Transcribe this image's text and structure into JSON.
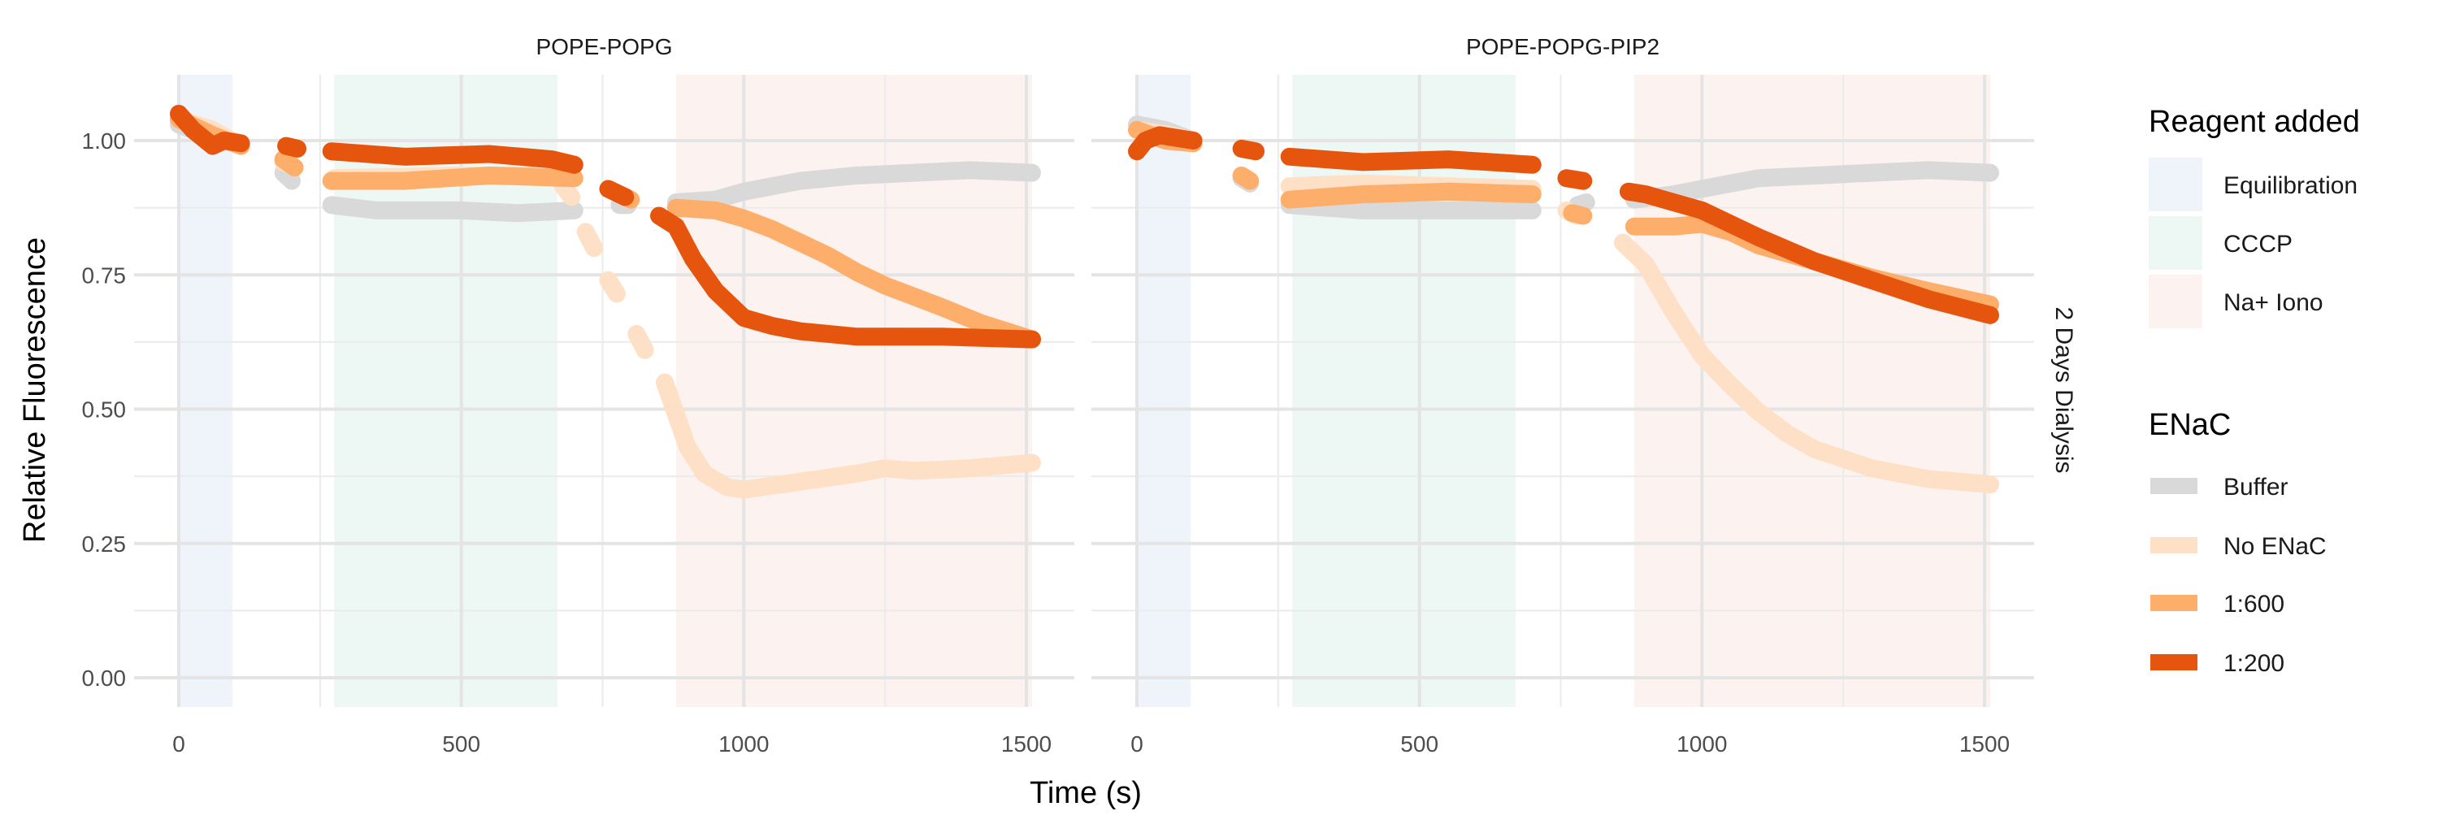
{
  "chart_data": {
    "type": "scatter",
    "xlabel": "Time (s)",
    "ylabel": "Relative Fluorescence",
    "xlim": [
      -40,
      1560
    ],
    "ylim": [
      -0.05,
      1.1
    ],
    "x_ticks": [
      0,
      500,
      1000,
      1500
    ],
    "x_tick_labels": [
      "0",
      "500",
      "1000",
      "1500"
    ],
    "y_ticks": [
      0,
      0.25,
      0.5,
      0.75,
      1.0
    ],
    "y_tick_labels": [
      "0.00",
      "0.25",
      "0.50",
      "0.75",
      "1.00"
    ],
    "grid": true,
    "row_strip": "2 Days Dialysis",
    "legend_position": "right",
    "reagent_legend": {
      "title": "Reagent added",
      "items": [
        {
          "label": "Equilibration",
          "color": "#eef4fa",
          "range": [
            0,
            95
          ]
        },
        {
          "label": "CCCP",
          "color": "#edf7f4",
          "range": [
            275,
            670
          ]
        },
        {
          "label": "Na+ Iono",
          "color": "#fcf2f0",
          "range": [
            880,
            1510
          ]
        }
      ]
    },
    "enac_legend": {
      "title": "ENaC",
      "items": [
        {
          "label": "Buffer",
          "color": "#d9d9d9"
        },
        {
          "label": "No ENaC",
          "color": "#fde0c5"
        },
        {
          "label": "1:600",
          "color": "#fdae6b"
        },
        {
          "label": "1:200",
          "color": "#e6550d"
        }
      ]
    },
    "panels": [
      {
        "title": "POPE-POPG",
        "series": [
          {
            "name": "Buffer",
            "segments": [
              [
                [
                  0,
                  1.03
                ],
                [
                  50,
                  1.01
                ],
                [
                  110,
                  0.995
                ]
              ],
              [
                [
                  185,
                  0.94
                ],
                [
                  200,
                  0.925
                ]
              ],
              [
                [
                  270,
                  0.88
                ],
                [
                  350,
                  0.87
                ],
                [
                  500,
                  0.87
                ],
                [
                  600,
                  0.865
                ],
                [
                  700,
                  0.87
                ]
              ],
              [
                [
                  780,
                  0.88
                ],
                [
                  795,
                  0.88
                ]
              ],
              [
                [
                  880,
                  0.885
                ],
                [
                  950,
                  0.89
                ],
                [
                  1000,
                  0.905
                ],
                [
                  1100,
                  0.925
                ],
                [
                  1200,
                  0.935
                ],
                [
                  1300,
                  0.94
                ],
                [
                  1400,
                  0.945
                ],
                [
                  1510,
                  0.94
                ]
              ]
            ]
          },
          {
            "name": "No ENaC",
            "segments": [
              [
                [
                  0,
                  1.04
                ],
                [
                  60,
                  1.02
                ],
                [
                  110,
                  0.99
                ]
              ],
              [
                [
                  185,
                  0.96
                ],
                [
                  200,
                  0.955
                ]
              ],
              [
                [
                  275,
                  0.93
                ],
                [
                  500,
                  0.935
                ],
                [
                  670,
                  0.935
                ]
              ],
              [
                [
                  680,
                  0.915
                ],
                [
                  695,
                  0.895
                ]
              ],
              [
                [
                  720,
                  0.83
                ],
                [
                  735,
                  0.8
                ]
              ],
              [
                [
                  760,
                  0.74
                ],
                [
                  775,
                  0.715
                ]
              ],
              [
                [
                  810,
                  0.64
                ],
                [
                  825,
                  0.61
                ]
              ],
              [
                [
                  860,
                  0.55
                ],
                [
                  880,
                  0.49
                ],
                [
                  900,
                  0.43
                ],
                [
                  930,
                  0.38
                ],
                [
                  970,
                  0.355
                ],
                [
                  1000,
                  0.35
                ],
                [
                  1100,
                  0.365
                ],
                [
                  1200,
                  0.38
                ],
                [
                  1250,
                  0.39
                ],
                [
                  1300,
                  0.385
                ],
                [
                  1400,
                  0.39
                ],
                [
                  1510,
                  0.4
                ]
              ]
            ]
          },
          {
            "name": "1:600",
            "segments": [
              [
                [
                  0,
                  1.04
                ],
                [
                  60,
                  1.01
                ],
                [
                  110,
                  0.99
                ]
              ],
              [
                [
                  185,
                  0.965
                ],
                [
                  205,
                  0.95
                ]
              ],
              [
                [
                  270,
                  0.925
                ],
                [
                  400,
                  0.925
                ],
                [
                  550,
                  0.935
                ],
                [
                  700,
                  0.93
                ]
              ],
              [
                [
                  790,
                  0.895
                ],
                [
                  800,
                  0.89
                ]
              ],
              [
                [
                  880,
                  0.875
                ],
                [
                  950,
                  0.87
                ],
                [
                  1000,
                  0.855
                ],
                [
                  1050,
                  0.835
                ],
                [
                  1100,
                  0.81
                ],
                [
                  1150,
                  0.785
                ],
                [
                  1200,
                  0.755
                ],
                [
                  1250,
                  0.73
                ],
                [
                  1300,
                  0.71
                ],
                [
                  1350,
                  0.69
                ],
                [
                  1420,
                  0.66
                ],
                [
                  1510,
                  0.63
                ]
              ]
            ]
          },
          {
            "name": "1:200",
            "segments": [
              [
                [
                  0,
                  1.05
                ],
                [
                  25,
                  1.02
                ],
                [
                  60,
                  0.99
                ],
                [
                  80,
                  1.0
                ],
                [
                  110,
                  0.995
                ]
              ],
              [
                [
                  190,
                  0.99
                ],
                [
                  210,
                  0.985
                ]
              ],
              [
                [
                  270,
                  0.98
                ],
                [
                  400,
                  0.97
                ],
                [
                  550,
                  0.975
                ],
                [
                  660,
                  0.965
                ],
                [
                  700,
                  0.955
                ]
              ],
              [
                [
                  760,
                  0.91
                ],
                [
                  790,
                  0.895
                ]
              ],
              [
                [
                  850,
                  0.86
                ],
                [
                  880,
                  0.84
                ],
                [
                  910,
                  0.78
                ],
                [
                  950,
                  0.72
                ],
                [
                  1000,
                  0.67
                ],
                [
                  1050,
                  0.655
                ],
                [
                  1100,
                  0.645
                ],
                [
                  1200,
                  0.635
                ],
                [
                  1350,
                  0.635
                ],
                [
                  1510,
                  0.63
                ]
              ]
            ]
          }
        ]
      },
      {
        "title": "POPE-POPG-PIP2",
        "series": [
          {
            "name": "Buffer",
            "segments": [
              [
                [
                  0,
                  1.03
                ],
                [
                  50,
                  1.02
                ],
                [
                  100,
                  1.0
                ]
              ],
              [
                [
                  185,
                  0.93
                ],
                [
                  200,
                  0.92
                ]
              ],
              [
                [
                  270,
                  0.88
                ],
                [
                  400,
                  0.87
                ],
                [
                  550,
                  0.87
                ],
                [
                  700,
                  0.87
                ]
              ],
              [
                [
                  780,
                  0.88
                ],
                [
                  795,
                  0.885
                ]
              ],
              [
                [
                  880,
                  0.89
                ],
                [
                  950,
                  0.9
                ],
                [
                  1000,
                  0.91
                ],
                [
                  1100,
                  0.93
                ],
                [
                  1200,
                  0.935
                ],
                [
                  1300,
                  0.94
                ],
                [
                  1400,
                  0.945
                ],
                [
                  1510,
                  0.94
                ]
              ]
            ]
          },
          {
            "name": "No ENaC",
            "segments": [
              [
                [
                  0,
                  1.02
                ],
                [
                  60,
                  1.01
                ],
                [
                  100,
                  1.0
                ]
              ],
              [
                [
                  185,
                  0.935
                ],
                [
                  200,
                  0.925
                ]
              ],
              [
                [
                  270,
                  0.915
                ],
                [
                  400,
                  0.92
                ],
                [
                  550,
                  0.915
                ],
                [
                  700,
                  0.91
                ]
              ],
              [
                [
                  760,
                  0.87
                ],
                [
                  780,
                  0.86
                ]
              ],
              [
                [
                  860,
                  0.81
                ],
                [
                  900,
                  0.77
                ],
                [
                  950,
                  0.68
                ],
                [
                  1000,
                  0.6
                ],
                [
                  1050,
                  0.545
                ],
                [
                  1100,
                  0.495
                ],
                [
                  1150,
                  0.455
                ],
                [
                  1200,
                  0.425
                ],
                [
                  1300,
                  0.39
                ],
                [
                  1400,
                  0.37
                ],
                [
                  1510,
                  0.36
                ]
              ]
            ]
          },
          {
            "name": "1:600",
            "segments": [
              [
                [
                  0,
                  1.02
                ],
                [
                  50,
                  1.0
                ],
                [
                  100,
                  0.995
                ]
              ],
              [
                [
                  185,
                  0.935
                ],
                [
                  200,
                  0.925
                ]
              ],
              [
                [
                  270,
                  0.89
                ],
                [
                  400,
                  0.9
                ],
                [
                  550,
                  0.905
                ],
                [
                  700,
                  0.9
                ]
              ],
              [
                [
                  770,
                  0.865
                ],
                [
                  790,
                  0.86
                ]
              ],
              [
                [
                  880,
                  0.84
                ],
                [
                  950,
                  0.84
                ],
                [
                  1000,
                  0.845
                ],
                [
                  1050,
                  0.83
                ],
                [
                  1100,
                  0.805
                ],
                [
                  1200,
                  0.775
                ],
                [
                  1300,
                  0.745
                ],
                [
                  1400,
                  0.72
                ],
                [
                  1510,
                  0.695
                ]
              ]
            ]
          },
          {
            "name": "1:200",
            "segments": [
              [
                [
                  0,
                  0.98
                ],
                [
                  15,
                  1.0
                ],
                [
                  40,
                  1.01
                ],
                [
                  100,
                  1.0
                ]
              ],
              [
                [
                  185,
                  0.985
                ],
                [
                  210,
                  0.98
                ]
              ],
              [
                [
                  270,
                  0.97
                ],
                [
                  400,
                  0.96
                ],
                [
                  550,
                  0.965
                ],
                [
                  700,
                  0.955
                ]
              ],
              [
                [
                  760,
                  0.93
                ],
                [
                  790,
                  0.925
                ]
              ],
              [
                [
                  870,
                  0.905
                ],
                [
                  900,
                  0.9
                ],
                [
                  1000,
                  0.87
                ],
                [
                  1100,
                  0.82
                ],
                [
                  1200,
                  0.775
                ],
                [
                  1300,
                  0.74
                ],
                [
                  1400,
                  0.705
                ],
                [
                  1510,
                  0.675
                ]
              ]
            ]
          }
        ]
      }
    ]
  }
}
